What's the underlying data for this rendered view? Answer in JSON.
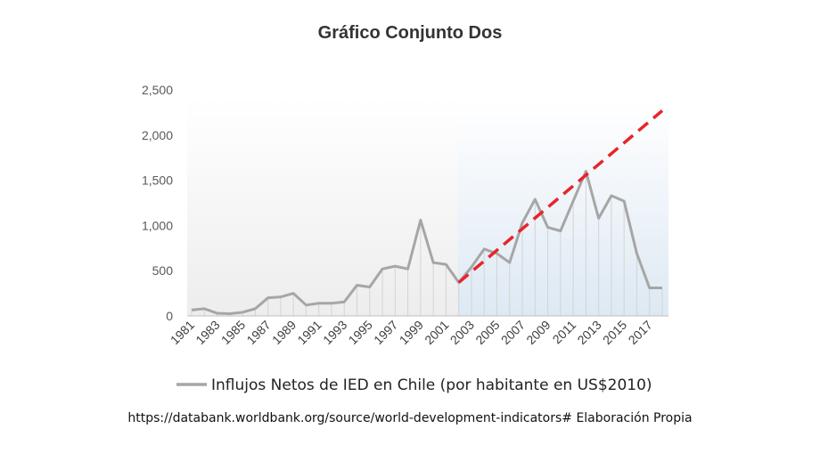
{
  "chart_data": {
    "type": "line",
    "title": "Gráfico Conjunto Dos",
    "x": [
      1981,
      1982,
      1983,
      1984,
      1985,
      1986,
      1987,
      1988,
      1989,
      1990,
      1991,
      1992,
      1993,
      1994,
      1995,
      1996,
      1997,
      1998,
      1999,
      2000,
      2001,
      2002,
      2003,
      2004,
      2005,
      2006,
      2007,
      2008,
      2009,
      2010,
      2011,
      2012,
      2013,
      2014,
      2015,
      2016,
      2017,
      2018
    ],
    "x_tick_labels": [
      "1981",
      "1983",
      "1985",
      "1987",
      "1989",
      "1991",
      "1993",
      "1995",
      "1997",
      "1999",
      "2001",
      "2003",
      "2005",
      "2007",
      "2009",
      "2011",
      "2013",
      "2015",
      "2017"
    ],
    "y_tick_labels": [
      "0",
      "500",
      "1,000",
      "1,500",
      "2,000",
      "2,500"
    ],
    "ylim": [
      0,
      2500
    ],
    "series": [
      {
        "name": "Influjos Netos de IED en Chile (por habitante en US$2010)",
        "color": "#a6a6a6",
        "values": [
          65,
          80,
          30,
          25,
          40,
          80,
          200,
          210,
          250,
          120,
          140,
          140,
          155,
          340,
          320,
          520,
          550,
          520,
          1060,
          590,
          570,
          370,
          540,
          740,
          690,
          590,
          1030,
          1290,
          980,
          940,
          1270,
          1600,
          1080,
          1330,
          1270,
          690,
          310,
          310
        ]
      }
    ],
    "trend_line": {
      "from": [
        2002,
        370
      ],
      "to": [
        2018,
        2270
      ],
      "color": "#e8242b",
      "style": "dashed"
    },
    "highlight_region": {
      "x_from": 2002,
      "x_to": 2018,
      "color": "#dfeaf5"
    },
    "legend": "bottom",
    "grid": false
  },
  "source_text": "https://databank.worldbank.org/source/world-development-indicators# Elaboración Propia"
}
